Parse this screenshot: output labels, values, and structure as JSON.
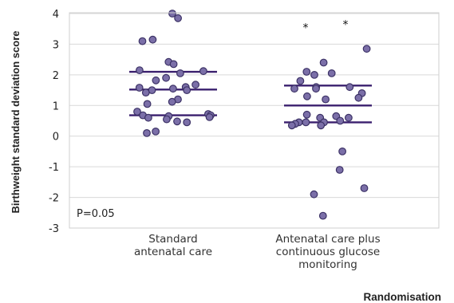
{
  "chart_data": {
    "type": "scatter",
    "xlabel": "Randomisation",
    "ylabel": "Birthweight standard deviation score",
    "ylim": [
      -3,
      4
    ],
    "yticks": [
      "4",
      "3",
      "2",
      "1",
      "0",
      "-1",
      "-2",
      "-3"
    ],
    "grid": true,
    "annotation": "P=0.05",
    "colors": {
      "point": "#7b6fa8",
      "point_edge": "#3c3266",
      "line": "#3a1f6e",
      "grid": "#d9d9d9"
    },
    "groups": [
      {
        "label_lines": [
          "Standard",
          "antenatal care"
        ],
        "summary_lines": [
          2.1,
          1.52,
          0.68
        ],
        "outliers": [],
        "values": [
          4.0,
          3.85,
          3.1,
          3.15,
          2.42,
          2.35,
          2.15,
          2.12,
          2.05,
          1.9,
          1.82,
          1.68,
          1.6,
          1.58,
          1.55,
          1.5,
          1.5,
          1.42,
          1.2,
          1.12,
          1.05,
          0.8,
          0.72,
          0.68,
          0.68,
          0.65,
          0.62,
          0.6,
          0.55,
          0.48,
          0.45,
          0.15,
          0.1
        ]
      },
      {
        "label_lines": [
          "Antenatal care plus",
          "continuous glucose",
          "monitoring"
        ],
        "summary_lines": [
          1.65,
          1.0,
          0.45
        ],
        "outliers": [
          3.65,
          3.75
        ],
        "values": [
          2.85,
          2.4,
          2.1,
          2.05,
          2.0,
          1.8,
          1.6,
          1.6,
          1.55,
          1.55,
          1.4,
          1.3,
          1.25,
          1.2,
          0.7,
          0.65,
          0.6,
          0.6,
          0.5,
          0.45,
          0.45,
          0.45,
          0.4,
          0.35,
          0.35,
          -0.5,
          -1.1,
          -1.7,
          -1.9,
          -2.6
        ]
      }
    ]
  }
}
